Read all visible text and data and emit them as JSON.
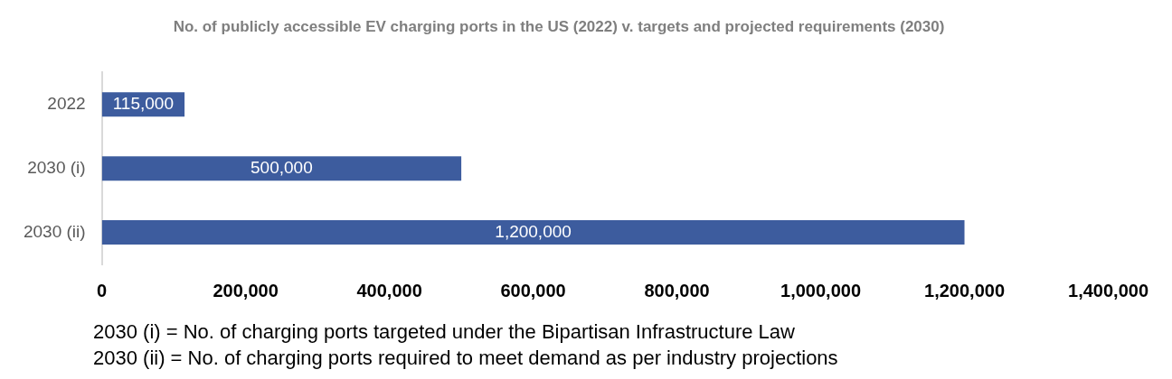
{
  "chart_data": {
    "type": "bar",
    "orientation": "horizontal",
    "title": "No. of publicly accessible EV charging ports in the US (2022) v. targets and projected requirements (2030)",
    "categories": [
      "2022",
      "2030 (i)",
      "2030 (ii)"
    ],
    "values": [
      115000,
      500000,
      1200000
    ],
    "color": "#3d5c9e",
    "value_labels": [
      "115,000",
      "500,000",
      "1,200,000"
    ],
    "xlim": [
      0,
      1400000
    ],
    "xticks": [
      0,
      {
        "value": 200000,
        "label": "200,000"
      },
      {
        "value": 400000,
        "label": "400,000"
      },
      {
        "value": 600000,
        "label": "600,000"
      },
      {
        "value": 800000,
        "label": "800,000"
      },
      {
        "value": 1000000,
        "label": "1,000,000"
      },
      {
        "value": 1200000,
        "label": "1,200,000"
      },
      {
        "value": 1400000,
        "label": "1,400,000"
      }
    ],
    "grid": false,
    "legend": false,
    "annotations": [
      "2030 (i) = No. of charging ports targeted under the Bipartisan Infrastructure Law",
      "2030 (ii) = No. of charging ports required to meet demand as per industry projections"
    ]
  }
}
